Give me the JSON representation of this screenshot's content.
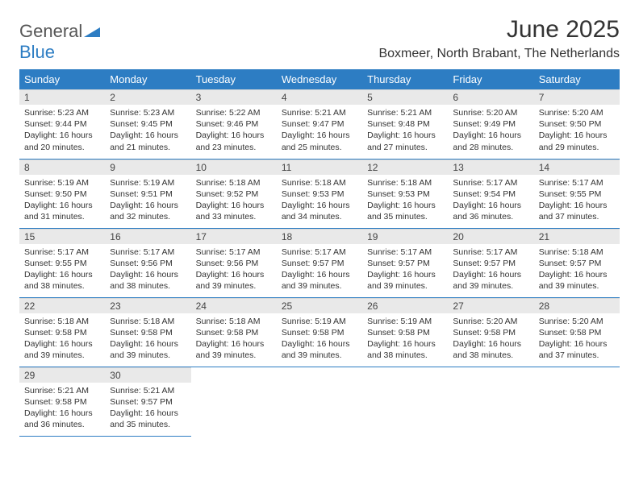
{
  "logo": {
    "text1": "General",
    "text2": "Blue"
  },
  "title": "June 2025",
  "location": "Boxmeer, North Brabant, The Netherlands",
  "colors": {
    "header_bg": "#2d7dc3",
    "header_text": "#ffffff",
    "daynum_bg": "#e9e9e9",
    "row_border": "#2d7dc3",
    "page_bg": "#ffffff",
    "body_text": "#333333"
  },
  "typography": {
    "title_fontsize": 30,
    "location_fontsize": 16,
    "dayheader_fontsize": 13,
    "cell_fontsize": 10.5
  },
  "day_headers": [
    "Sunday",
    "Monday",
    "Tuesday",
    "Wednesday",
    "Thursday",
    "Friday",
    "Saturday"
  ],
  "weeks": [
    [
      {
        "num": "1",
        "sunrise": "5:23 AM",
        "sunset": "9:44 PM",
        "daylight": "16 hours and 20 minutes."
      },
      {
        "num": "2",
        "sunrise": "5:23 AM",
        "sunset": "9:45 PM",
        "daylight": "16 hours and 21 minutes."
      },
      {
        "num": "3",
        "sunrise": "5:22 AM",
        "sunset": "9:46 PM",
        "daylight": "16 hours and 23 minutes."
      },
      {
        "num": "4",
        "sunrise": "5:21 AM",
        "sunset": "9:47 PM",
        "daylight": "16 hours and 25 minutes."
      },
      {
        "num": "5",
        "sunrise": "5:21 AM",
        "sunset": "9:48 PM",
        "daylight": "16 hours and 27 minutes."
      },
      {
        "num": "6",
        "sunrise": "5:20 AM",
        "sunset": "9:49 PM",
        "daylight": "16 hours and 28 minutes."
      },
      {
        "num": "7",
        "sunrise": "5:20 AM",
        "sunset": "9:50 PM",
        "daylight": "16 hours and 29 minutes."
      }
    ],
    [
      {
        "num": "8",
        "sunrise": "5:19 AM",
        "sunset": "9:50 PM",
        "daylight": "16 hours and 31 minutes."
      },
      {
        "num": "9",
        "sunrise": "5:19 AM",
        "sunset": "9:51 PM",
        "daylight": "16 hours and 32 minutes."
      },
      {
        "num": "10",
        "sunrise": "5:18 AM",
        "sunset": "9:52 PM",
        "daylight": "16 hours and 33 minutes."
      },
      {
        "num": "11",
        "sunrise": "5:18 AM",
        "sunset": "9:53 PM",
        "daylight": "16 hours and 34 minutes."
      },
      {
        "num": "12",
        "sunrise": "5:18 AM",
        "sunset": "9:53 PM",
        "daylight": "16 hours and 35 minutes."
      },
      {
        "num": "13",
        "sunrise": "5:17 AM",
        "sunset": "9:54 PM",
        "daylight": "16 hours and 36 minutes."
      },
      {
        "num": "14",
        "sunrise": "5:17 AM",
        "sunset": "9:55 PM",
        "daylight": "16 hours and 37 minutes."
      }
    ],
    [
      {
        "num": "15",
        "sunrise": "5:17 AM",
        "sunset": "9:55 PM",
        "daylight": "16 hours and 38 minutes."
      },
      {
        "num": "16",
        "sunrise": "5:17 AM",
        "sunset": "9:56 PM",
        "daylight": "16 hours and 38 minutes."
      },
      {
        "num": "17",
        "sunrise": "5:17 AM",
        "sunset": "9:56 PM",
        "daylight": "16 hours and 39 minutes."
      },
      {
        "num": "18",
        "sunrise": "5:17 AM",
        "sunset": "9:57 PM",
        "daylight": "16 hours and 39 minutes."
      },
      {
        "num": "19",
        "sunrise": "5:17 AM",
        "sunset": "9:57 PM",
        "daylight": "16 hours and 39 minutes."
      },
      {
        "num": "20",
        "sunrise": "5:17 AM",
        "sunset": "9:57 PM",
        "daylight": "16 hours and 39 minutes."
      },
      {
        "num": "21",
        "sunrise": "5:18 AM",
        "sunset": "9:57 PM",
        "daylight": "16 hours and 39 minutes."
      }
    ],
    [
      {
        "num": "22",
        "sunrise": "5:18 AM",
        "sunset": "9:58 PM",
        "daylight": "16 hours and 39 minutes."
      },
      {
        "num": "23",
        "sunrise": "5:18 AM",
        "sunset": "9:58 PM",
        "daylight": "16 hours and 39 minutes."
      },
      {
        "num": "24",
        "sunrise": "5:18 AM",
        "sunset": "9:58 PM",
        "daylight": "16 hours and 39 minutes."
      },
      {
        "num": "25",
        "sunrise": "5:19 AM",
        "sunset": "9:58 PM",
        "daylight": "16 hours and 39 minutes."
      },
      {
        "num": "26",
        "sunrise": "5:19 AM",
        "sunset": "9:58 PM",
        "daylight": "16 hours and 38 minutes."
      },
      {
        "num": "27",
        "sunrise": "5:20 AM",
        "sunset": "9:58 PM",
        "daylight": "16 hours and 38 minutes."
      },
      {
        "num": "28",
        "sunrise": "5:20 AM",
        "sunset": "9:58 PM",
        "daylight": "16 hours and 37 minutes."
      }
    ],
    [
      {
        "num": "29",
        "sunrise": "5:21 AM",
        "sunset": "9:58 PM",
        "daylight": "16 hours and 36 minutes."
      },
      {
        "num": "30",
        "sunrise": "5:21 AM",
        "sunset": "9:57 PM",
        "daylight": "16 hours and 35 minutes."
      },
      null,
      null,
      null,
      null,
      null
    ]
  ],
  "labels": {
    "sunrise_prefix": "Sunrise: ",
    "sunset_prefix": "Sunset: ",
    "daylight_prefix": "Daylight: "
  }
}
